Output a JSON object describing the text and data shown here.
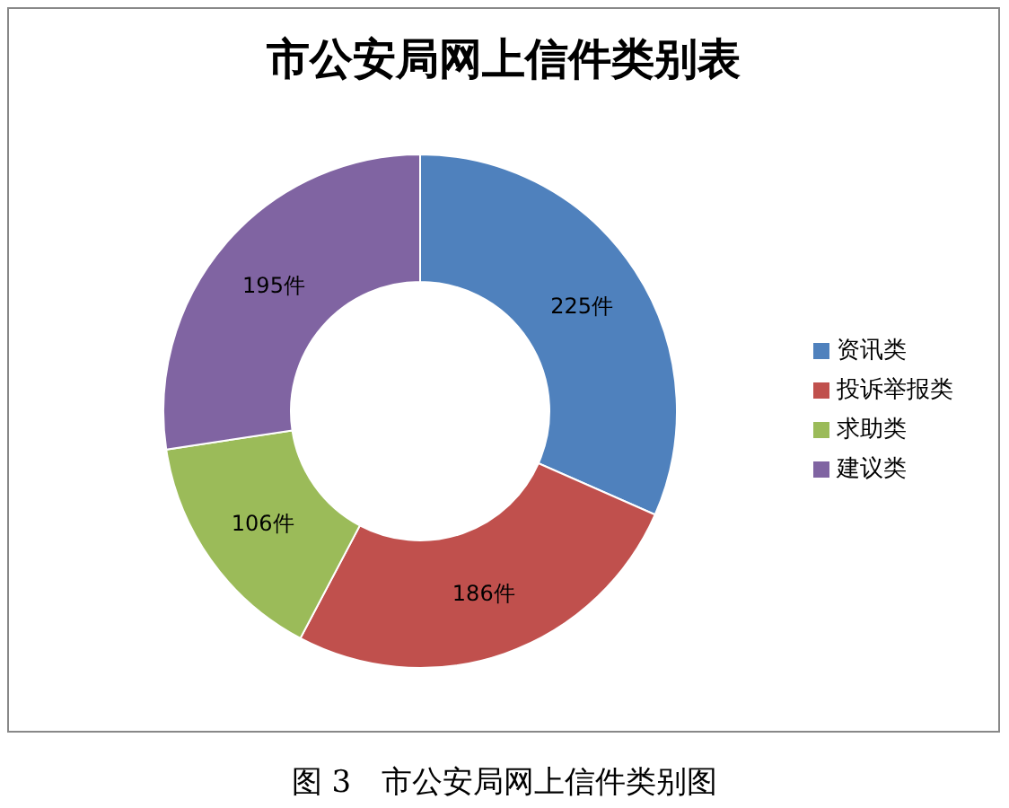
{
  "chart_data": {
    "type": "donut",
    "title": "市公安局网上信件类别表",
    "categories": [
      "资讯类",
      "投诉举报类",
      "求助类",
      "建议类"
    ],
    "values": [
      225,
      186,
      106,
      195
    ],
    "colors": [
      "#4f81bd",
      "#c0504d",
      "#9bbb59",
      "#8064a2"
    ],
    "value_labels": [
      "225件",
      "186件",
      "106件",
      "195件"
    ],
    "legend": "right",
    "annotations": [
      "图 3　市公安局网上信件类别图"
    ]
  }
}
